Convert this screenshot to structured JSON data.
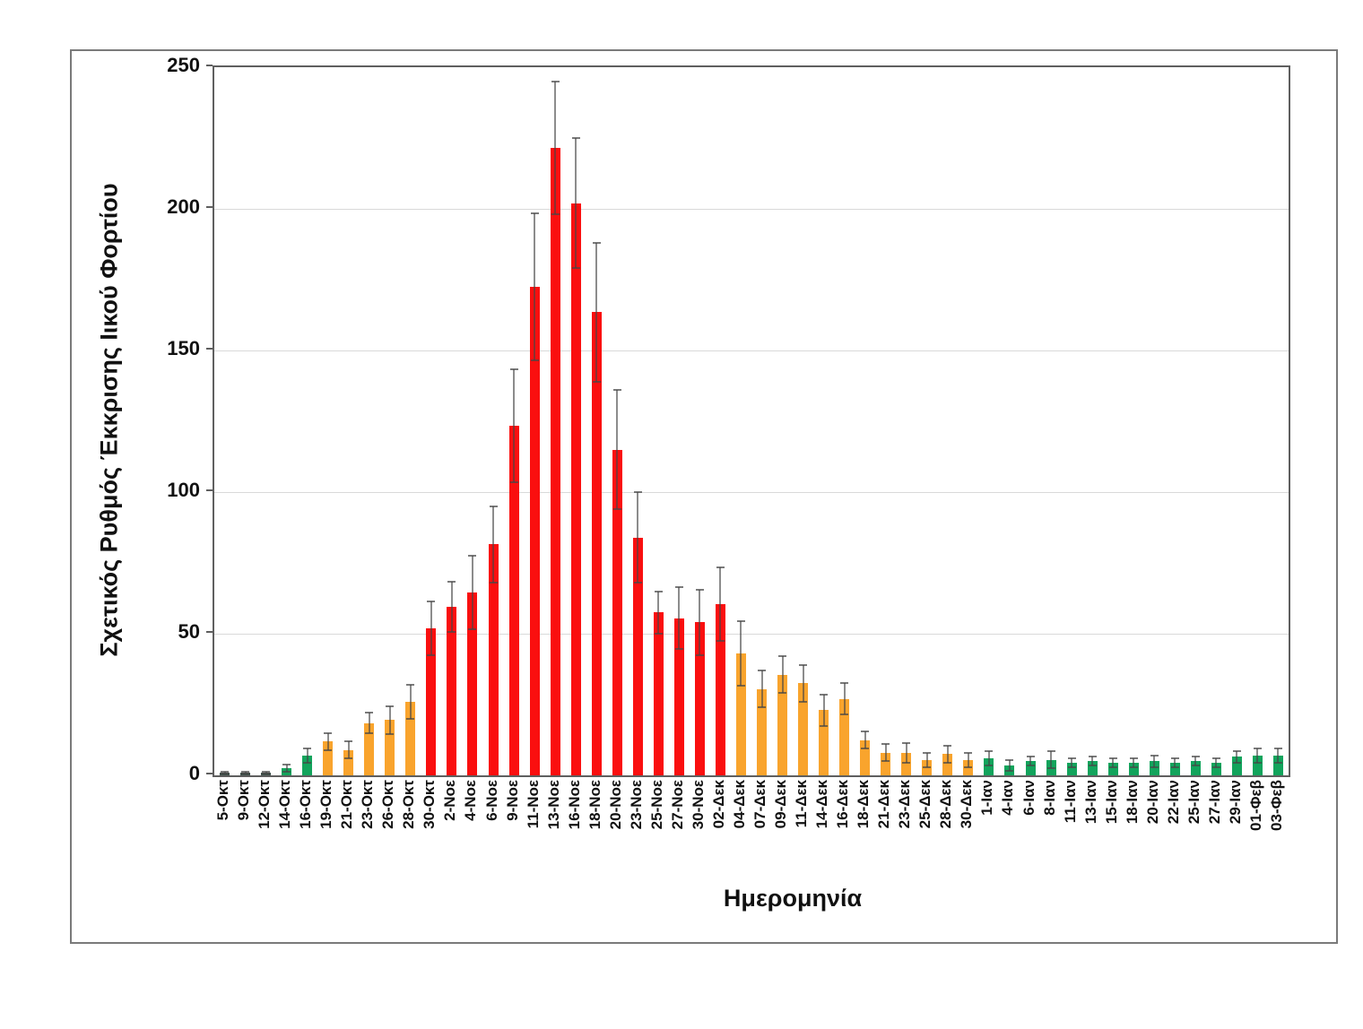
{
  "chart_data": {
    "type": "bar",
    "title": "",
    "ylabel": "Σχετικός Ρυθμός Έκκρισης Ιικού Φορτίου",
    "xlabel": "Ημερομηνία",
    "ylim": [
      0,
      250
    ],
    "yticks": [
      0,
      50,
      100,
      150,
      200,
      250
    ],
    "grid": "horizontal-light-gray",
    "legend": "none",
    "error_bars": "symmetric with caps",
    "palette": {
      "dark": "#3d4f48",
      "green": "#12a45c",
      "orange": "#f9a42d",
      "red": "#fa0f0f",
      "error": "rgba(70,70,70,0.62)",
      "gridline": "#d9d9d9"
    },
    "categories": [
      "5-Οκτ",
      "9-Οκτ",
      "12-Οκτ",
      "14-Οκτ",
      "16-Οκτ",
      "19-Οκτ",
      "21-Οκτ",
      "23-Οκτ",
      "26-Οκτ",
      "28-Οκτ",
      "30-Οκτ",
      "2-Νοε",
      "4-Νοε",
      "6-Νοε",
      "9-Νοε",
      "11-Νοε",
      "13-Νοε",
      "16-Νοε",
      "18-Νοε",
      "20-Νοε",
      "23-Νοε",
      "25-Νοε",
      "27-Νοε",
      "30-Νοε",
      "02-Δεκ",
      "04-Δεκ",
      "07-Δεκ",
      "09-Δεκ",
      "11-Δεκ",
      "14-Δεκ",
      "16-Δεκ",
      "18-Δεκ",
      "21-Δεκ",
      "23-Δεκ",
      "25-Δεκ",
      "28-Δεκ",
      "30-Δεκ",
      "1-Ιαν",
      "4-Ιαν",
      "6-Ιαν",
      "8-Ιαν",
      "11-Ιαν",
      "13-Ιαν",
      "15-Ιαν",
      "18-Ιαν",
      "20-Ιαν",
      "22-Ιαν",
      "25-Ιαν",
      "27-Ιαν",
      "29-Ιαν",
      "01-Φεβ",
      "03-Φεβ"
    ],
    "values": [
      1,
      1,
      1,
      2.5,
      7,
      12,
      9,
      18.5,
      19.5,
      26,
      52,
      59.5,
      64.5,
      81.5,
      123.5,
      172.5,
      221.5,
      202,
      163.5,
      115,
      84,
      57.5,
      55.5,
      54,
      60.5,
      43,
      30.5,
      35.5,
      32.5,
      23,
      27,
      12.5,
      8,
      8,
      5.5,
      7.5,
      5.5,
      6,
      3.5,
      5,
      5.5,
      4.5,
      5,
      4.5,
      4.5,
      5,
      4.5,
      5,
      4.5,
      6.5,
      7,
      7
    ],
    "errors": [
      0.3,
      0.3,
      0.3,
      1.2,
      2.5,
      3,
      3,
      3.5,
      5,
      6,
      9.5,
      9,
      13,
      13.5,
      20,
      26,
      23.5,
      23,
      24.5,
      21,
      16,
      7.5,
      11,
      11.5,
      13,
      11.5,
      6.5,
      6.5,
      6.5,
      5.5,
      5.5,
      3,
      3,
      3.5,
      2.5,
      3,
      2.5,
      2.5,
      2,
      1.5,
      3,
      1.5,
      1.5,
      1.5,
      1.5,
      2,
      1.5,
      1.5,
      1.5,
      2,
      2.5,
      2.5
    ],
    "bar_colors": [
      "dark",
      "dark",
      "dark",
      "green",
      "green",
      "orange",
      "orange",
      "orange",
      "orange",
      "orange",
      "red",
      "red",
      "red",
      "red",
      "red",
      "red",
      "red",
      "red",
      "red",
      "red",
      "red",
      "red",
      "red",
      "red",
      "red",
      "orange",
      "orange",
      "orange",
      "orange",
      "orange",
      "orange",
      "orange",
      "orange",
      "orange",
      "orange",
      "orange",
      "orange",
      "green",
      "green",
      "green",
      "green",
      "green",
      "green",
      "green",
      "green",
      "green",
      "green",
      "green",
      "green",
      "green",
      "green",
      "green"
    ]
  }
}
